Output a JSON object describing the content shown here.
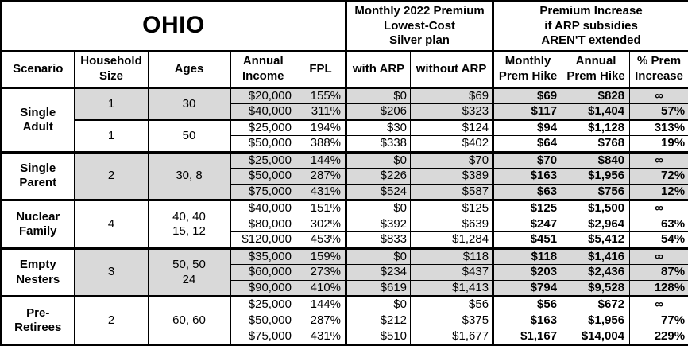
{
  "title": "OHIO",
  "header_groups": {
    "premium": "Monthly 2022 Premium\nLowest-Cost\nSilver plan",
    "increase": "Premium Increase\nif ARP subsidies\nAREN'T extended"
  },
  "columns": {
    "scenario": "Scenario",
    "household": "Household\nSize",
    "ages": "Ages",
    "income": "Annual\nIncome",
    "fpl": "FPL",
    "with_arp": "with ARP",
    "without_arp": "without ARP",
    "monthly_hike": "Monthly\nPrem Hike",
    "annual_hike": "Annual\nPrem Hike",
    "pct_increase": "% Prem\nIncrease"
  },
  "colors": {
    "shaded_row": "#d9d9d9",
    "border": "#000000",
    "background": "#ffffff",
    "text": "#000000"
  },
  "infinity_symbol": "∞",
  "sections": [
    {
      "scenario": "Single\nAdult",
      "subgroups": [
        {
          "household": "1",
          "ages": "30",
          "shaded": true,
          "rows": [
            {
              "income": "$20,000",
              "fpl": "155%",
              "with_arp": "$0",
              "without_arp": "$69",
              "monthly_hike": "$69",
              "annual_hike": "$828",
              "pct_increase": "∞"
            },
            {
              "income": "$40,000",
              "fpl": "311%",
              "with_arp": "$206",
              "without_arp": "$323",
              "monthly_hike": "$117",
              "annual_hike": "$1,404",
              "pct_increase": "57%"
            }
          ]
        },
        {
          "household": "1",
          "ages": "50",
          "shaded": false,
          "rows": [
            {
              "income": "$25,000",
              "fpl": "194%",
              "with_arp": "$30",
              "without_arp": "$124",
              "monthly_hike": "$94",
              "annual_hike": "$1,128",
              "pct_increase": "313%"
            },
            {
              "income": "$50,000",
              "fpl": "388%",
              "with_arp": "$338",
              "without_arp": "$402",
              "monthly_hike": "$64",
              "annual_hike": "$768",
              "pct_increase": "19%"
            }
          ]
        }
      ]
    },
    {
      "scenario": "Single\nParent",
      "subgroups": [
        {
          "household": "2",
          "ages": "30, 8",
          "shaded": true,
          "rows": [
            {
              "income": "$25,000",
              "fpl": "144%",
              "with_arp": "$0",
              "without_arp": "$70",
              "monthly_hike": "$70",
              "annual_hike": "$840",
              "pct_increase": "∞"
            },
            {
              "income": "$50,000",
              "fpl": "287%",
              "with_arp": "$226",
              "without_arp": "$389",
              "monthly_hike": "$163",
              "annual_hike": "$1,956",
              "pct_increase": "72%"
            },
            {
              "income": "$75,000",
              "fpl": "431%",
              "with_arp": "$524",
              "without_arp": "$587",
              "monthly_hike": "$63",
              "annual_hike": "$756",
              "pct_increase": "12%"
            }
          ]
        }
      ]
    },
    {
      "scenario": "Nuclear\nFamily",
      "subgroups": [
        {
          "household": "4",
          "ages": "40, 40\n15, 12",
          "shaded": false,
          "rows": [
            {
              "income": "$40,000",
              "fpl": "151%",
              "with_arp": "$0",
              "without_arp": "$125",
              "monthly_hike": "$125",
              "annual_hike": "$1,500",
              "pct_increase": "∞"
            },
            {
              "income": "$80,000",
              "fpl": "302%",
              "with_arp": "$392",
              "without_arp": "$639",
              "monthly_hike": "$247",
              "annual_hike": "$2,964",
              "pct_increase": "63%"
            },
            {
              "income": "$120,000",
              "fpl": "453%",
              "with_arp": "$833",
              "without_arp": "$1,284",
              "monthly_hike": "$451",
              "annual_hike": "$5,412",
              "pct_increase": "54%"
            }
          ]
        }
      ]
    },
    {
      "scenario": "Empty\nNesters",
      "subgroups": [
        {
          "household": "3",
          "ages": "50, 50\n24",
          "shaded": true,
          "rows": [
            {
              "income": "$35,000",
              "fpl": "159%",
              "with_arp": "$0",
              "without_arp": "$118",
              "monthly_hike": "$118",
              "annual_hike": "$1,416",
              "pct_increase": "∞"
            },
            {
              "income": "$60,000",
              "fpl": "273%",
              "with_arp": "$234",
              "without_arp": "$437",
              "monthly_hike": "$203",
              "annual_hike": "$2,436",
              "pct_increase": "87%"
            },
            {
              "income": "$90,000",
              "fpl": "410%",
              "with_arp": "$619",
              "without_arp": "$1,413",
              "monthly_hike": "$794",
              "annual_hike": "$9,528",
              "pct_increase": "128%"
            }
          ]
        }
      ]
    },
    {
      "scenario": "Pre-\nRetirees",
      "subgroups": [
        {
          "household": "2",
          "ages": "60, 60",
          "shaded": false,
          "rows": [
            {
              "income": "$25,000",
              "fpl": "144%",
              "with_arp": "$0",
              "without_arp": "$56",
              "monthly_hike": "$56",
              "annual_hike": "$672",
              "pct_increase": "∞"
            },
            {
              "income": "$50,000",
              "fpl": "287%",
              "with_arp": "$212",
              "without_arp": "$375",
              "monthly_hike": "$163",
              "annual_hike": "$1,956",
              "pct_increase": "77%"
            },
            {
              "income": "$75,000",
              "fpl": "431%",
              "with_arp": "$510",
              "without_arp": "$1,677",
              "monthly_hike": "$1,167",
              "annual_hike": "$14,004",
              "pct_increase": "229%"
            }
          ]
        }
      ]
    }
  ]
}
